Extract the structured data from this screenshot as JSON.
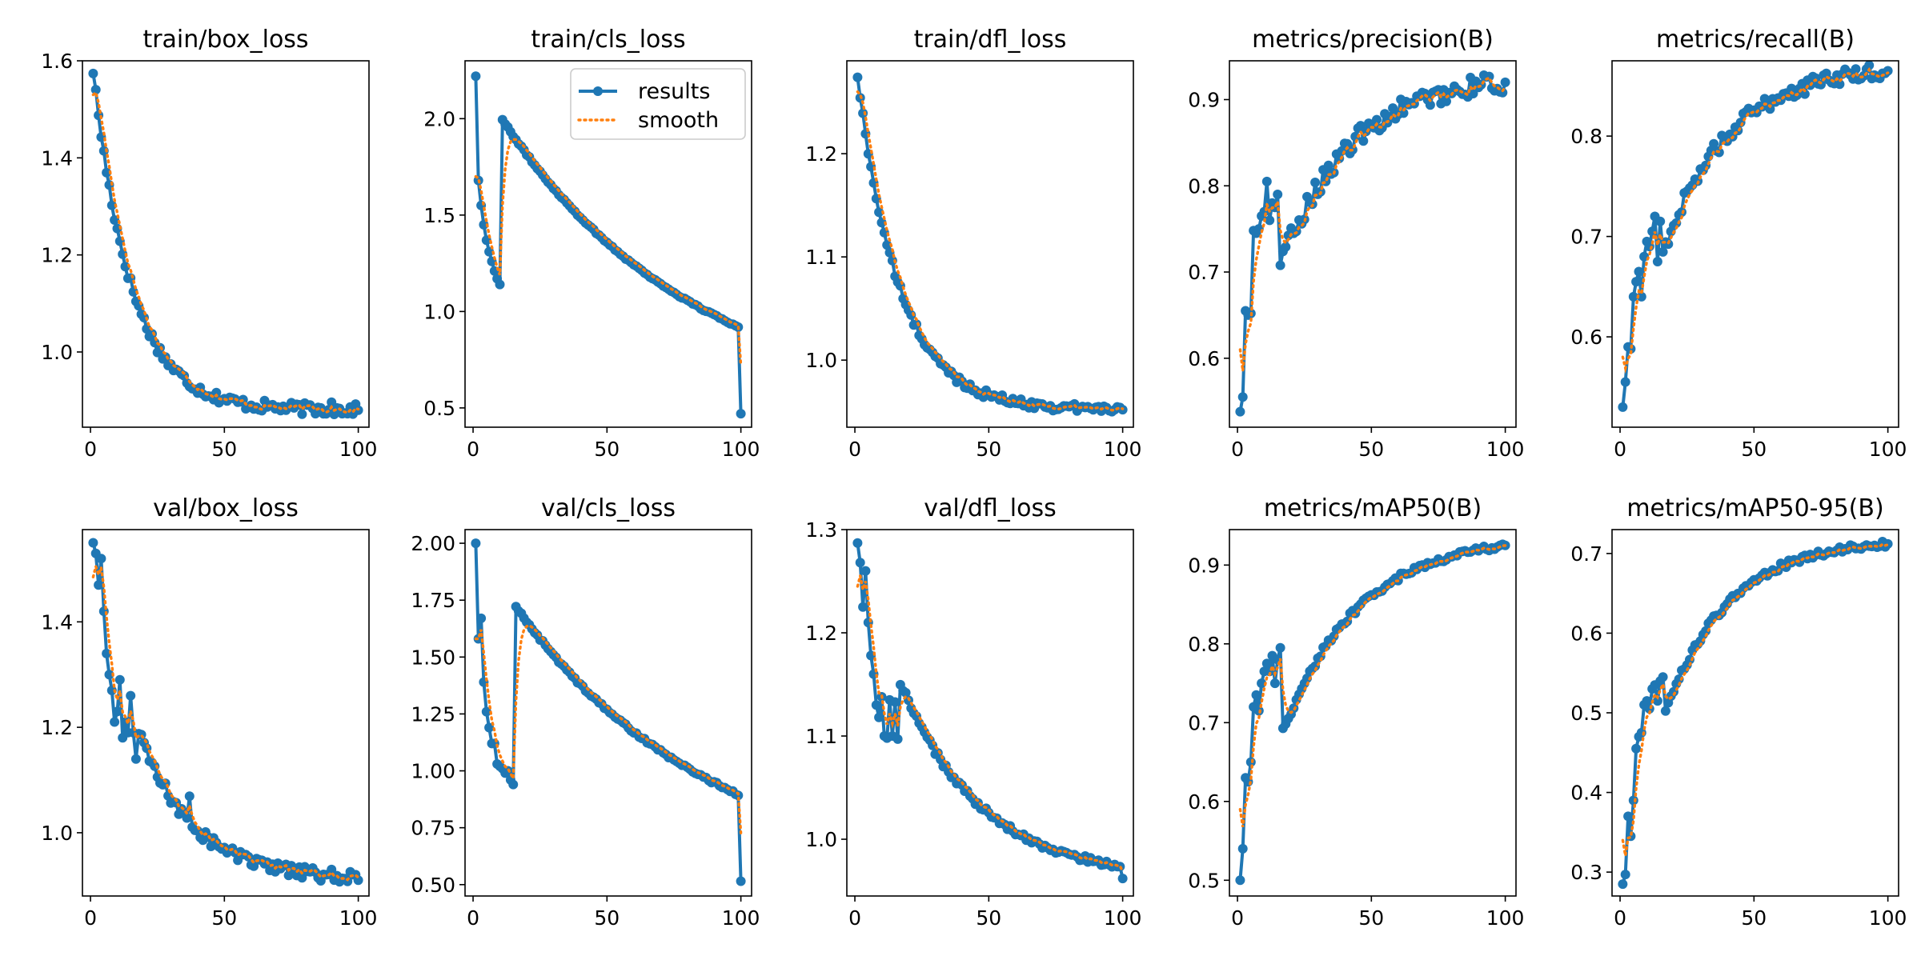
{
  "colors": {
    "results": "#1f77b4",
    "smooth": "#ff7f0e",
    "axes": "#000000",
    "background": "#ffffff"
  },
  "legend": {
    "panel": 1,
    "placement": "upper-right",
    "entries": [
      "results",
      "smooth"
    ]
  },
  "chart_data": [
    {
      "type": "line",
      "title": "train/box_loss",
      "xlim": [
        -3,
        104
      ],
      "ylim": [
        0.845,
        1.6
      ],
      "xticks": [
        0,
        50,
        100
      ],
      "xtick_labels": [
        "0",
        "50",
        "100"
      ],
      "yticks": [
        1.0,
        1.2,
        1.4,
        1.6
      ],
      "ytick_labels": [
        "1.0",
        "1.2",
        "1.4",
        "1.6"
      ],
      "start": 1.58,
      "end": 0.88,
      "shape": 2.3,
      "noise": 0.012,
      "smooth_start": 1.53,
      "spikes": [
        [
          90,
          0.025
        ]
      ],
      "series": [
        {
          "name": "results",
          "style": "line-markers"
        },
        {
          "name": "smooth",
          "style": "dotted"
        }
      ]
    },
    {
      "type": "line",
      "title": "train/cls_loss",
      "xlim": [
        -3,
        104
      ],
      "ylim": [
        0.4,
        2.3
      ],
      "xticks": [
        0,
        50,
        100
      ],
      "xtick_labels": [
        "0",
        "50",
        "100"
      ],
      "yticks": [
        0.5,
        1.0,
        1.5,
        2.0
      ],
      "ytick_labels": [
        "0.5",
        "1.0",
        "1.5",
        "2.0"
      ],
      "start": 2.22,
      "end": 0.47,
      "shape": 0.45,
      "noise": 0.005,
      "smooth_start": 1.7,
      "points": [
        [
          1,
          2.22
        ],
        [
          2,
          1.68
        ],
        [
          3,
          1.55
        ],
        [
          4,
          1.45
        ],
        [
          5,
          1.37
        ],
        [
          6,
          1.31
        ],
        [
          7,
          1.26
        ],
        [
          8,
          1.21
        ],
        [
          9,
          1.17
        ],
        [
          10,
          1.14
        ]
      ],
      "series": [
        {
          "name": "results",
          "style": "line-markers"
        },
        {
          "name": "smooth",
          "style": "dotted"
        }
      ]
    },
    {
      "type": "line",
      "title": "train/dfl_loss",
      "xlim": [
        -3,
        104
      ],
      "ylim": [
        0.935,
        1.29
      ],
      "xticks": [
        0,
        50,
        100
      ],
      "xtick_labels": [
        "0",
        "50",
        "100"
      ],
      "yticks": [
        1.0,
        1.1,
        1.2
      ],
      "ytick_labels": [
        "1.0",
        "1.1",
        "1.2"
      ],
      "start": 1.275,
      "end": 0.952,
      "shape": 2.1,
      "noise": 0.004,
      "smooth_start": 1.26,
      "series": [
        {
          "name": "results",
          "style": "line-markers"
        },
        {
          "name": "smooth",
          "style": "dotted"
        }
      ]
    },
    {
      "type": "line",
      "title": "metrics/precision(B)",
      "xlim": [
        -3,
        104
      ],
      "ylim": [
        0.52,
        0.945
      ],
      "xticks": [
        0,
        50,
        100
      ],
      "xtick_labels": [
        "0",
        "50",
        "100"
      ],
      "yticks": [
        0.6,
        0.7,
        0.8,
        0.9
      ],
      "ytick_labels": [
        "0.6",
        "0.7",
        "0.8",
        "0.9"
      ],
      "start": 0.54,
      "end": 0.92,
      "shape": 0.75,
      "noise": 0.012,
      "smooth_start": 0.61,
      "points": [
        [
          1,
          0.538
        ],
        [
          2,
          0.555
        ],
        [
          3,
          0.655
        ],
        [
          4,
          0.65
        ],
        [
          5,
          0.652
        ],
        [
          6,
          0.748
        ],
        [
          7,
          0.745
        ],
        [
          8,
          0.75
        ],
        [
          9,
          0.765
        ],
        [
          10,
          0.77
        ],
        [
          11,
          0.805
        ],
        [
          12,
          0.76
        ],
        [
          13,
          0.78
        ],
        [
          14,
          0.775
        ],
        [
          15,
          0.79
        ]
      ],
      "series": [
        {
          "name": "results",
          "style": "line-markers"
        },
        {
          "name": "smooth",
          "style": "dotted"
        }
      ]
    },
    {
      "type": "line",
      "title": "metrics/recall(B)",
      "xlim": [
        -3,
        104
      ],
      "ylim": [
        0.51,
        0.875
      ],
      "xticks": [
        0,
        50,
        100
      ],
      "xtick_labels": [
        "0",
        "50",
        "100"
      ],
      "yticks": [
        0.6,
        0.7,
        0.8
      ],
      "ytick_labels": [
        "0.6",
        "0.7",
        "0.8"
      ],
      "start": 0.53,
      "end": 0.865,
      "shape": 0.8,
      "noise": 0.008,
      "smooth_start": 0.58,
      "points": [
        [
          1,
          0.53
        ],
        [
          2,
          0.555
        ],
        [
          3,
          0.59
        ],
        [
          4,
          0.588
        ],
        [
          5,
          0.64
        ],
        [
          6,
          0.655
        ],
        [
          7,
          0.665
        ],
        [
          8,
          0.64
        ],
        [
          9,
          0.68
        ],
        [
          10,
          0.695
        ],
        [
          11,
          0.69
        ],
        [
          12,
          0.705
        ],
        [
          13,
          0.72
        ],
        [
          14,
          0.675
        ],
        [
          15,
          0.715
        ]
      ],
      "series": [
        {
          "name": "results",
          "style": "line-markers"
        },
        {
          "name": "smooth",
          "style": "dotted"
        }
      ]
    },
    {
      "type": "line",
      "title": "val/box_loss",
      "xlim": [
        -3,
        104
      ],
      "ylim": [
        0.88,
        1.575
      ],
      "xticks": [
        0,
        50,
        100
      ],
      "xtick_labels": [
        "0",
        "50",
        "100"
      ],
      "yticks": [
        1.0,
        1.2,
        1.4
      ],
      "ytick_labels": [
        "1.0",
        "1.2",
        "1.4"
      ],
      "start": 1.55,
      "end": 0.91,
      "shape": 1.6,
      "noise": 0.012,
      "smooth_start": 1.485,
      "points": [
        [
          1,
          1.55
        ],
        [
          2,
          1.53
        ],
        [
          3,
          1.47
        ],
        [
          4,
          1.52
        ],
        [
          5,
          1.42
        ],
        [
          6,
          1.34
        ],
        [
          7,
          1.3
        ],
        [
          8,
          1.27
        ],
        [
          9,
          1.21
        ],
        [
          10,
          1.23
        ],
        [
          11,
          1.29
        ],
        [
          12,
          1.18
        ],
        [
          13,
          1.21
        ],
        [
          14,
          1.19
        ],
        [
          15,
          1.26
        ],
        [
          16,
          1.19
        ],
        [
          17,
          1.14
        ]
      ],
      "spikes": [
        [
          37,
          0.055
        ]
      ],
      "series": [
        {
          "name": "results",
          "style": "line-markers"
        },
        {
          "name": "smooth",
          "style": "dotted"
        }
      ]
    },
    {
      "type": "line",
      "title": "val/cls_loss",
      "xlim": [
        -3,
        104
      ],
      "ylim": [
        0.45,
        2.06
      ],
      "xticks": [
        0,
        50,
        100
      ],
      "xtick_labels": [
        "0",
        "50",
        "100"
      ],
      "yticks": [
        0.5,
        0.75,
        1.0,
        1.25,
        1.5,
        1.75,
        2.0
      ],
      "ytick_labels": [
        "0.50",
        "0.75",
        "1.00",
        "1.25",
        "1.50",
        "1.75",
        "2.00"
      ],
      "start": 2.0,
      "end": 0.515,
      "shape": 0.45,
      "noise": 0.006,
      "smooth_start": 1.58,
      "points": [
        [
          1,
          2.0
        ],
        [
          2,
          1.58
        ],
        [
          3,
          1.67
        ],
        [
          4,
          1.39
        ],
        [
          5,
          1.26
        ],
        [
          6,
          1.19
        ],
        [
          7,
          1.12
        ],
        [
          8,
          1.12
        ],
        [
          9,
          1.03
        ],
        [
          10,
          1.02
        ],
        [
          11,
          1.01
        ],
        [
          12,
          0.99
        ],
        [
          13,
          1.0
        ],
        [
          14,
          0.96
        ],
        [
          15,
          0.94
        ]
      ],
      "series": [
        {
          "name": "results",
          "style": "line-markers"
        },
        {
          "name": "smooth",
          "style": "dotted"
        }
      ]
    },
    {
      "type": "line",
      "title": "val/dfl_loss",
      "xlim": [
        -3,
        104
      ],
      "ylim": [
        0.945,
        1.3
      ],
      "xticks": [
        0,
        50,
        100
      ],
      "xtick_labels": [
        "0",
        "50",
        "100"
      ],
      "yticks": [
        1.0,
        1.1,
        1.2,
        1.3
      ],
      "ytick_labels": [
        "1.0",
        "1.1",
        "1.2",
        "1.3"
      ],
      "start": 1.287,
      "end": 0.962,
      "shape": 1.1,
      "noise": 0.003,
      "smooth_start": 1.245,
      "points": [
        [
          1,
          1.287
        ],
        [
          2,
          1.268
        ],
        [
          3,
          1.225
        ],
        [
          4,
          1.26
        ],
        [
          5,
          1.21
        ],
        [
          6,
          1.178
        ],
        [
          7,
          1.16
        ],
        [
          8,
          1.13
        ],
        [
          9,
          1.118
        ],
        [
          10,
          1.138
        ],
        [
          11,
          1.1
        ],
        [
          12,
          1.098
        ],
        [
          13,
          1.135
        ],
        [
          14,
          1.1
        ],
        [
          15,
          1.133
        ],
        [
          16,
          1.097
        ]
      ],
      "series": [
        {
          "name": "results",
          "style": "line-markers"
        },
        {
          "name": "smooth",
          "style": "dotted"
        }
      ]
    },
    {
      "type": "line",
      "title": "metrics/mAP50(B)",
      "xlim": [
        -3,
        104
      ],
      "ylim": [
        0.48,
        0.945
      ],
      "xticks": [
        0,
        50,
        100
      ],
      "xtick_labels": [
        "0",
        "50",
        "100"
      ],
      "yticks": [
        0.5,
        0.6,
        0.7,
        0.8,
        0.9
      ],
      "ytick_labels": [
        "0.5",
        "0.6",
        "0.7",
        "0.8",
        "0.9"
      ],
      "start": 0.5,
      "end": 0.925,
      "shape": 0.7,
      "noise": 0.004,
      "smooth_start": 0.59,
      "points": [
        [
          1,
          0.5
        ],
        [
          2,
          0.54
        ],
        [
          3,
          0.63
        ],
        [
          4,
          0.625
        ],
        [
          5,
          0.65
        ],
        [
          6,
          0.72
        ],
        [
          7,
          0.735
        ],
        [
          8,
          0.715
        ],
        [
          9,
          0.75
        ],
        [
          10,
          0.765
        ],
        [
          11,
          0.775
        ],
        [
          12,
          0.765
        ],
        [
          13,
          0.785
        ],
        [
          14,
          0.75
        ],
        [
          15,
          0.78
        ],
        [
          16,
          0.795
        ]
      ],
      "series": [
        {
          "name": "results",
          "style": "line-markers"
        },
        {
          "name": "smooth",
          "style": "dotted"
        }
      ]
    },
    {
      "type": "line",
      "title": "metrics/mAP50-95(B)",
      "xlim": [
        -3,
        104
      ],
      "ylim": [
        0.27,
        0.73
      ],
      "xticks": [
        0,
        50,
        100
      ],
      "xtick_labels": [
        "0",
        "50",
        "100"
      ],
      "yticks": [
        0.3,
        0.4,
        0.5,
        0.6,
        0.7
      ],
      "ytick_labels": [
        "0.3",
        "0.4",
        "0.5",
        "0.6",
        "0.7"
      ],
      "start": 0.285,
      "end": 0.712,
      "shape": 0.85,
      "noise": 0.004,
      "smooth_start": 0.34,
      "points": [
        [
          1,
          0.285
        ],
        [
          2,
          0.297
        ],
        [
          3,
          0.37
        ],
        [
          4,
          0.345
        ],
        [
          5,
          0.39
        ],
        [
          6,
          0.455
        ],
        [
          7,
          0.47
        ],
        [
          8,
          0.475
        ],
        [
          9,
          0.51
        ],
        [
          10,
          0.515
        ],
        [
          11,
          0.505
        ],
        [
          12,
          0.53
        ],
        [
          13,
          0.535
        ],
        [
          14,
          0.515
        ],
        [
          15,
          0.54
        ],
        [
          16,
          0.545
        ]
      ],
      "series": [
        {
          "name": "results",
          "style": "line-markers"
        },
        {
          "name": "smooth",
          "style": "dotted"
        }
      ]
    }
  ]
}
